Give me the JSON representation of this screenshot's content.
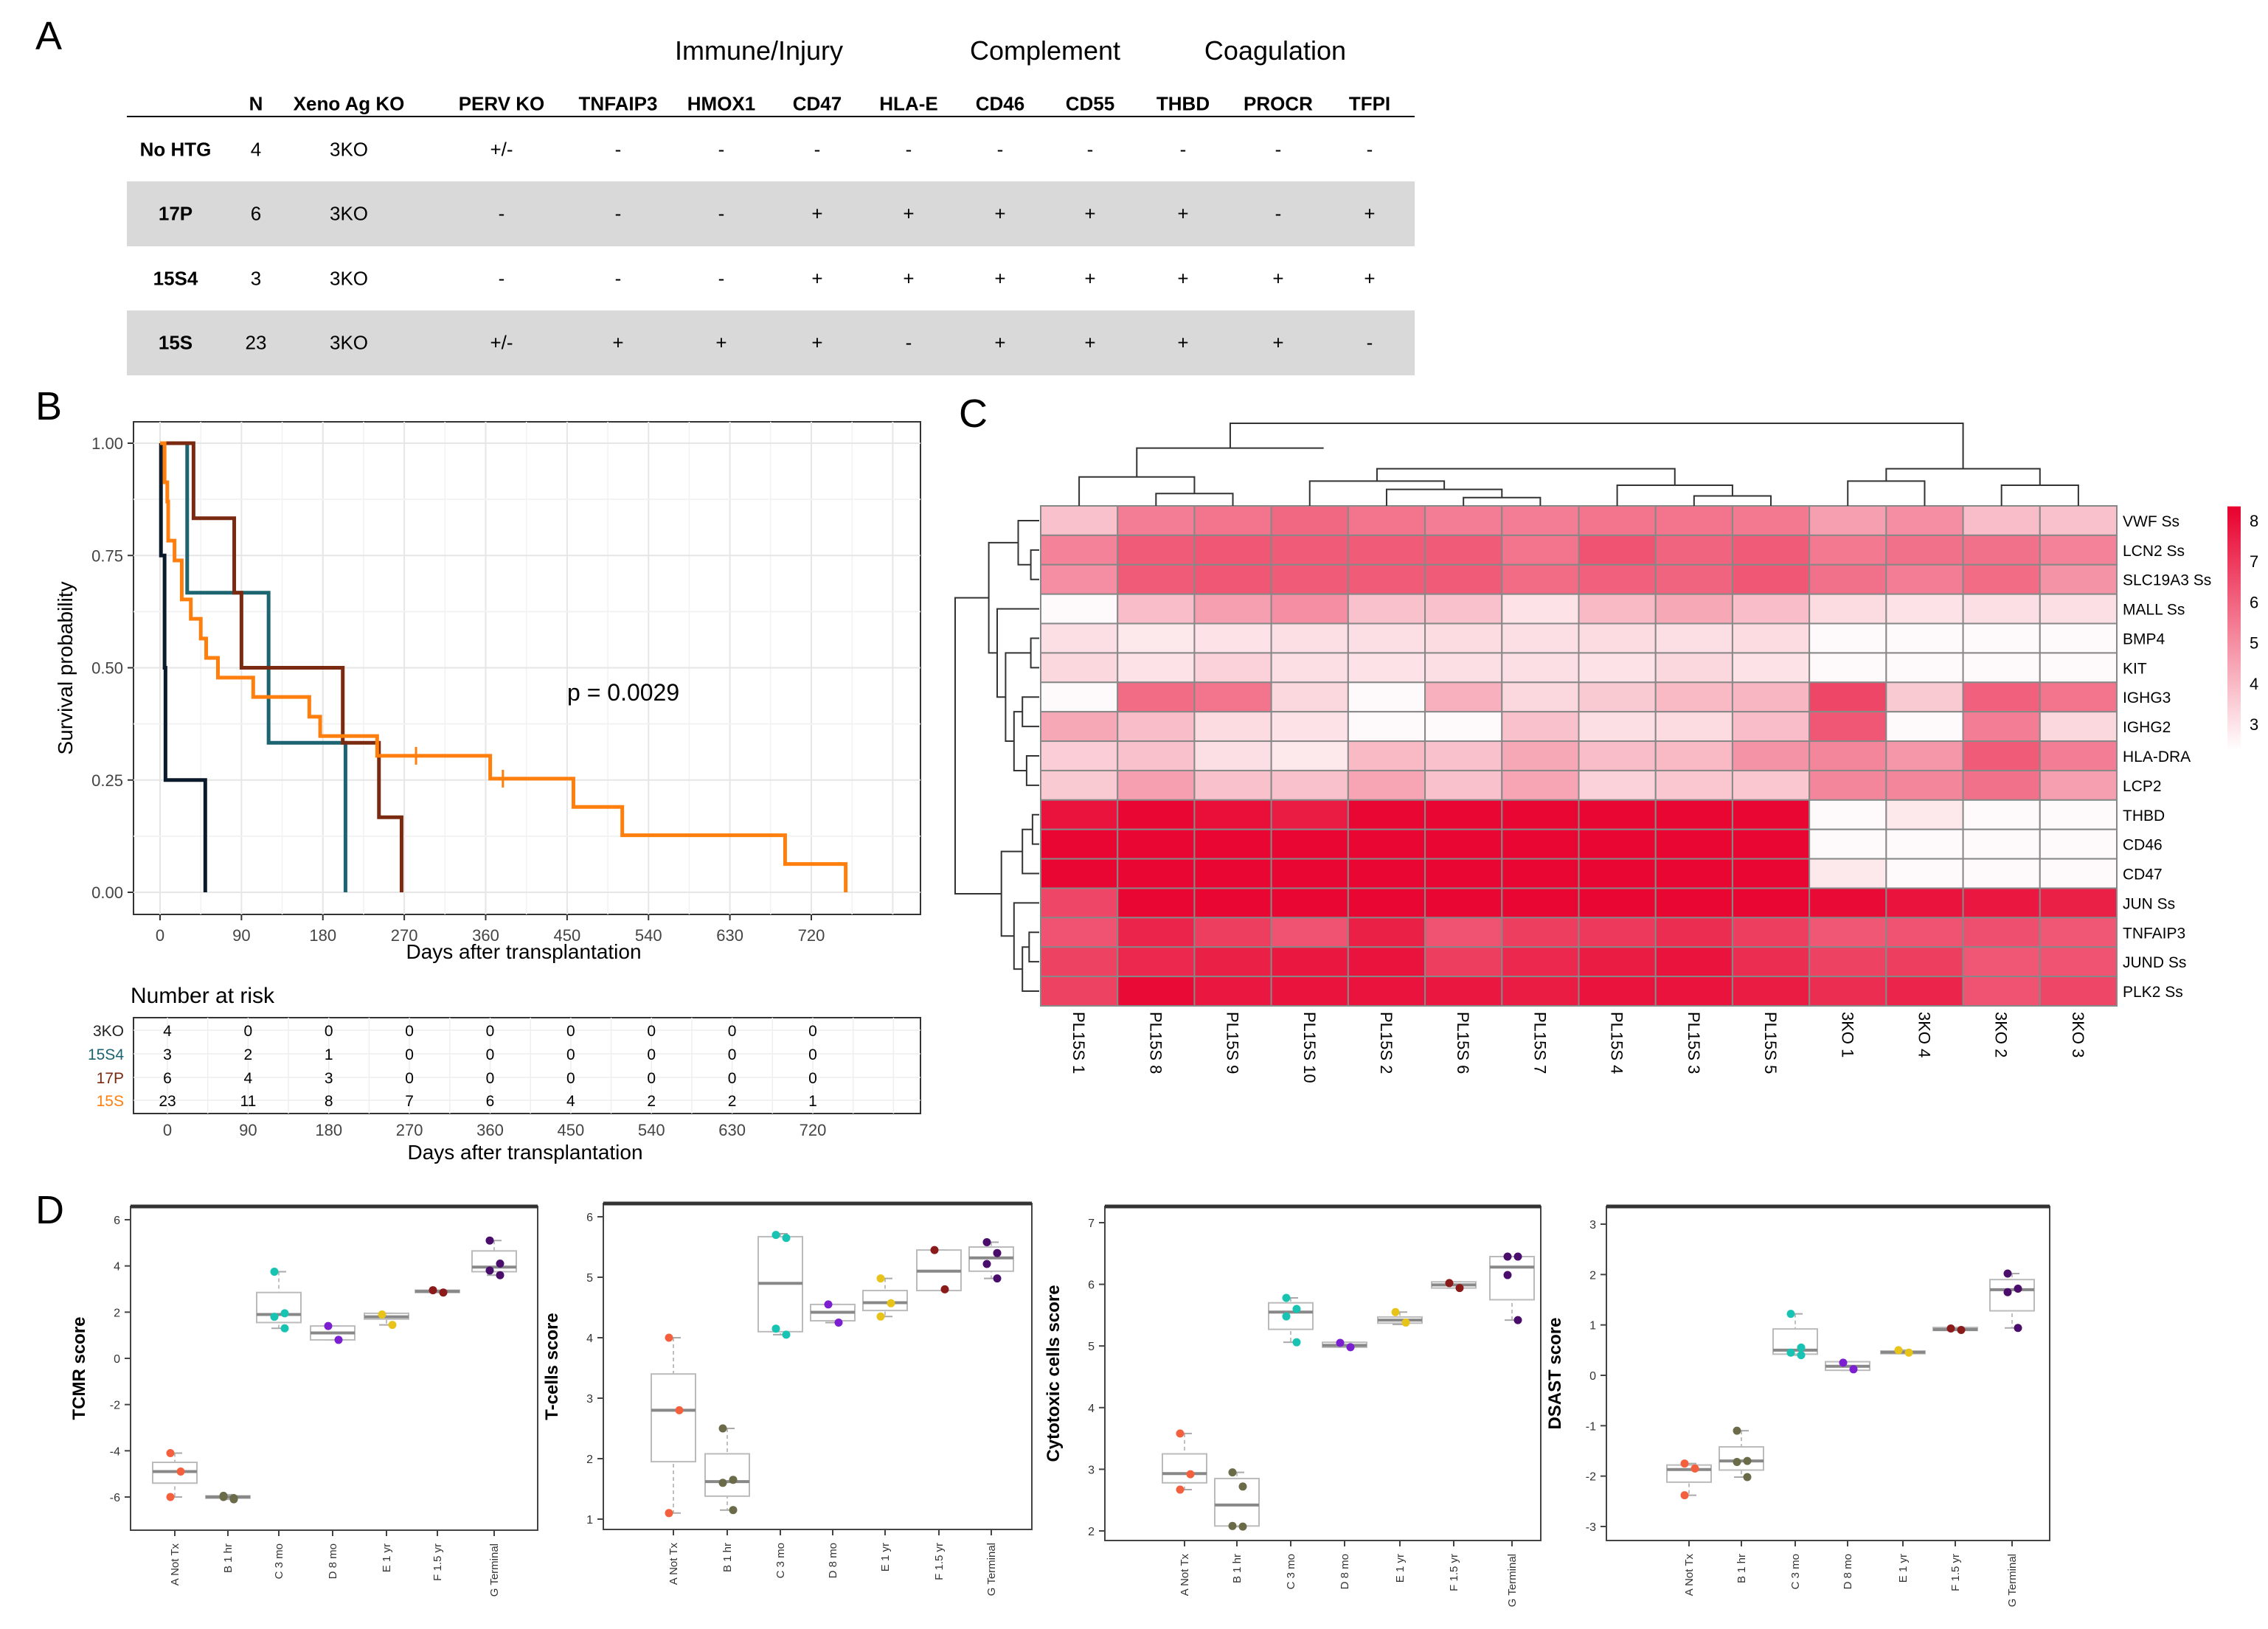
{
  "panels": {
    "a": "A",
    "b": "B",
    "c": "C",
    "d": "D"
  },
  "table": {
    "groups": [
      "Immune/Injury",
      "Complement",
      "Coagulation"
    ],
    "columns": [
      "N",
      "Xeno Ag KO",
      "PERV KO",
      "TNFAIP3",
      "HMOX1",
      "CD47",
      "HLA-E",
      "CD46",
      "CD55",
      "THBD",
      "PROCR",
      "TFPI"
    ],
    "rows": [
      {
        "label": "No HTG",
        "shaded": false,
        "cells": [
          "4",
          "3KO",
          "+/-",
          "-",
          "-",
          "-",
          "-",
          "-",
          "-",
          "-",
          "-",
          "-"
        ]
      },
      {
        "label": "17P",
        "shaded": true,
        "cells": [
          "6",
          "3KO",
          "-",
          "-",
          "-",
          "+",
          "+",
          "+",
          "+",
          "+",
          "-",
          "+"
        ]
      },
      {
        "label": "15S4",
        "shaded": false,
        "cells": [
          "3",
          "3KO",
          "-",
          "-",
          "-",
          "+",
          "+",
          "+",
          "+",
          "+",
          "+",
          "+"
        ]
      },
      {
        "label": "15S",
        "shaded": true,
        "cells": [
          "23",
          "3KO",
          "+/-",
          "+",
          "+",
          "+",
          "-",
          "+",
          "+",
          "+",
          "+",
          "-"
        ]
      }
    ]
  },
  "chart_data": [
    {
      "type": "line",
      "subtype": "kaplan-meier",
      "xlabel": "Days after transplantation",
      "ylabel": "Survival probability",
      "xlim": [
        0,
        810
      ],
      "ylim": [
        0,
        1
      ],
      "xticks": [
        0,
        90,
        180,
        270,
        360,
        450,
        540,
        630,
        720
      ],
      "yticks": [
        "0.00",
        "0.25",
        "0.50",
        "0.75",
        "1.00"
      ],
      "grid": true,
      "annotation": "p = 0.0029",
      "series": [
        {
          "name": "3KO",
          "color": "#0b1a2a",
          "steps": [
            [
              0,
              1
            ],
            [
              1,
              0.75
            ],
            [
              5,
              0.5
            ],
            [
              6,
              0.25
            ],
            [
              50,
              0
            ]
          ],
          "censored": []
        },
        {
          "name": "15S4",
          "color": "#1b6470",
          "steps": [
            [
              0,
              1
            ],
            [
              30,
              0.667
            ],
            [
              120,
              0.333
            ],
            [
              205,
              0
            ]
          ],
          "censored": []
        },
        {
          "name": "17P",
          "color": "#7a2a10",
          "steps": [
            [
              0,
              1
            ],
            [
              37,
              0.833
            ],
            [
              82,
              0.667
            ],
            [
              90,
              0.5
            ],
            [
              202,
              0.333
            ],
            [
              242,
              0.167
            ],
            [
              267,
              0
            ]
          ],
          "censored": []
        },
        {
          "name": "15S",
          "color": "#ff7f0e",
          "steps": [
            [
              0,
              1
            ],
            [
              5,
              0.913
            ],
            [
              8,
              0.87
            ],
            [
              9,
              0.783
            ],
            [
              16,
              0.739
            ],
            [
              24,
              0.652
            ],
            [
              34,
              0.609
            ],
            [
              45,
              0.565
            ],
            [
              51,
              0.522
            ],
            [
              64,
              0.478
            ],
            [
              103,
              0.435
            ],
            [
              165,
              0.391
            ],
            [
              177,
              0.348
            ],
            [
              240,
              0.304
            ],
            [
              365,
              0.253
            ],
            [
              457,
              0.19
            ],
            [
              511,
              0.127
            ],
            [
              691,
              0.063
            ],
            [
              758,
              0
            ]
          ],
          "censored": [
            [
              283,
              0.304
            ],
            [
              379,
              0.253
            ]
          ]
        }
      ],
      "risk_table": {
        "title": "Number at risk",
        "xlabel": "Days after transplantation",
        "times": [
          0,
          90,
          180,
          270,
          360,
          450,
          540,
          630,
          720
        ],
        "rows": [
          {
            "name": "3KO",
            "color": "#0b1a2a",
            "values": [
              4,
              0,
              0,
              0,
              0,
              0,
              0,
              0,
              0
            ]
          },
          {
            "name": "15S4",
            "color": "#1b6470",
            "values": [
              3,
              2,
              1,
              0,
              0,
              0,
              0,
              0,
              0
            ]
          },
          {
            "name": "17P",
            "color": "#7a2a10",
            "values": [
              6,
              4,
              3,
              0,
              0,
              0,
              0,
              0,
              0
            ]
          },
          {
            "name": "15S",
            "color": "#ff7f0e",
            "values": [
              23,
              11,
              8,
              7,
              6,
              4,
              2,
              2,
              1
            ]
          }
        ]
      }
    },
    {
      "type": "heatmap",
      "columns": [
        "PL15S 1",
        "PL15S 8",
        "PL15S 9",
        "PL15S 10",
        "PL15S 2",
        "PL15S 6",
        "PL15S 7",
        "PL15S 4",
        "PL15S 3",
        "PL15S 5",
        "3KO 1",
        "3KO 4",
        "3KO 2",
        "3KO 3"
      ],
      "rows": [
        "VWF Ss",
        "LCN2 Ss",
        "SLC19A3 Ss",
        "MALL Ss",
        "BMP4",
        "KIT",
        "IGHG3",
        "IGHG2",
        "HLA-DRA",
        "LCP2",
        "THBD",
        "CD46",
        "CD47",
        "JUN Ss",
        "TNFAIP3",
        "JUND Ss",
        "PLK2 Ss"
      ],
      "values": [
        [
          3.8,
          5.4,
          5.6,
          5.9,
          5.6,
          5.4,
          5.4,
          5.6,
          5.6,
          5.5,
          4.6,
          5.0,
          3.9,
          3.8
        ],
        [
          5.3,
          6.2,
          6.3,
          6.2,
          6.2,
          6.2,
          5.6,
          6.4,
          6.0,
          6.2,
          5.5,
          5.7,
          5.7,
          5.3
        ],
        [
          5.0,
          6.2,
          6.3,
          6.2,
          6.2,
          6.2,
          5.8,
          6.1,
          6.0,
          6.3,
          5.7,
          5.4,
          5.8,
          4.9
        ],
        [
          2.5,
          3.9,
          4.6,
          5.0,
          3.8,
          3.8,
          3.0,
          4.0,
          4.4,
          3.9,
          3.2,
          3.0,
          3.1,
          3.1
        ],
        [
          3.1,
          2.9,
          3.0,
          3.1,
          3.1,
          3.2,
          3.1,
          3.2,
          3.1,
          3.2,
          2.5,
          2.5,
          2.5,
          2.5
        ],
        [
          3.3,
          3.0,
          3.4,
          3.1,
          3.0,
          3.1,
          3.1,
          3.0,
          3.3,
          3.0,
          2.5,
          2.5,
          2.5,
          2.5
        ],
        [
          2.5,
          5.8,
          5.6,
          3.3,
          2.5,
          4.2,
          3.3,
          3.6,
          4.0,
          4.1,
          6.7,
          3.6,
          6.1,
          5.6
        ],
        [
          4.4,
          3.9,
          3.2,
          3.0,
          2.5,
          2.5,
          3.8,
          3.1,
          3.2,
          3.9,
          6.3,
          2.5,
          5.4,
          3.3
        ],
        [
          3.5,
          3.8,
          3.1,
          2.9,
          4.0,
          3.8,
          4.4,
          3.9,
          4.0,
          4.9,
          5.2,
          4.8,
          6.2,
          5.4
        ],
        [
          3.6,
          4.6,
          3.8,
          3.8,
          4.5,
          3.8,
          4.5,
          3.4,
          3.7,
          3.7,
          5.2,
          5.2,
          5.7,
          4.6
        ],
        [
          7.9,
          8.2,
          8.0,
          7.7,
          8.2,
          8.2,
          8.2,
          8.2,
          8.2,
          8.2,
          2.5,
          2.9,
          2.5,
          2.5
        ],
        [
          8.2,
          8.2,
          8.2,
          8.2,
          8.2,
          8.2,
          8.2,
          8.2,
          8.2,
          8.2,
          2.5,
          2.5,
          2.5,
          2.5
        ],
        [
          8.2,
          8.2,
          8.2,
          8.2,
          8.2,
          8.2,
          8.2,
          8.2,
          8.2,
          8.2,
          2.9,
          2.5,
          2.5,
          2.5
        ],
        [
          6.7,
          8.2,
          8.2,
          8.2,
          8.2,
          8.2,
          8.2,
          8.2,
          8.2,
          8.2,
          8.1,
          7.9,
          7.8,
          7.6
        ],
        [
          6.4,
          7.5,
          6.9,
          6.4,
          7.6,
          6.4,
          6.9,
          7.0,
          7.3,
          6.9,
          6.3,
          6.4,
          6.5,
          6.3
        ],
        [
          6.8,
          7.4,
          7.6,
          7.8,
          7.9,
          6.9,
          7.4,
          7.7,
          7.9,
          7.3,
          6.8,
          6.9,
          6.3,
          6.4
        ],
        [
          6.8,
          8.1,
          7.8,
          7.9,
          7.9,
          7.8,
          7.7,
          7.9,
          7.9,
          7.7,
          7.3,
          7.5,
          6.4,
          6.7
        ]
      ],
      "color_scale": {
        "low": "#ffffff",
        "high": "#e8002d",
        "range": [
          2.35,
          8.35
        ],
        "ticks": [
          3,
          4,
          5,
          6,
          7,
          8
        ]
      },
      "dendrogram": {
        "rows": true,
        "columns": true
      }
    },
    {
      "type": "box",
      "ylabel": "TCMR score",
      "ylim": [
        -7.5,
        6.5
      ],
      "yticks": [
        -6,
        -4,
        -2,
        0,
        2,
        4,
        6
      ],
      "categories": [
        "A Not Tx",
        "B 1 hr",
        "C 3 mo",
        "D 8 mo",
        "E 1 yr",
        "F 1.5 yr",
        "G Terminal"
      ],
      "boxes": [
        {
          "q1": -5.4,
          "median": -4.9,
          "q3": -4.5,
          "low": -6.0,
          "high": -4.1,
          "points": [
            -4.1,
            -4.9,
            -6.0
          ]
        },
        {
          "q1": -6.05,
          "median": -6.0,
          "q3": -5.95,
          "low": -6.1,
          "high": -5.9,
          "points": [
            -5.95,
            -6.05,
            -6.0,
            -6.1
          ]
        },
        {
          "q1": 1.55,
          "median": 1.9,
          "q3": 2.85,
          "low": 1.3,
          "high": 3.75,
          "points": [
            3.75,
            1.95,
            1.8,
            1.3
          ]
        },
        {
          "q1": 0.8,
          "median": 1.1,
          "q3": 1.4,
          "low": 0.8,
          "high": 1.4,
          "points": [
            1.4,
            0.8
          ]
        },
        {
          "q1": 1.7,
          "median": 1.8,
          "q3": 1.95,
          "low": 1.45,
          "high": 1.95,
          "points": [
            1.9,
            1.45
          ]
        },
        {
          "q1": 2.85,
          "median": 2.9,
          "q3": 2.95,
          "low": 2.85,
          "high": 2.95,
          "points": [
            2.95,
            2.85
          ]
        },
        {
          "q1": 3.75,
          "median": 3.95,
          "q3": 4.65,
          "low": 3.6,
          "high": 5.1,
          "points": [
            5.1,
            4.1,
            3.8,
            3.6
          ]
        }
      ]
    },
    {
      "type": "box",
      "ylabel": "T-cells score",
      "ylim": [
        0.8,
        6.2
      ],
      "yticks": [
        1,
        2,
        3,
        4,
        5,
        6
      ],
      "categories": [
        "A Not Tx",
        "B 1 hr",
        "C 3 mo",
        "D 8 mo",
        "E 1 yr",
        "F 1.5 yr",
        "G Terminal"
      ],
      "boxes": [
        {
          "q1": 1.95,
          "median": 2.8,
          "q3": 3.4,
          "low": 1.1,
          "high": 4.0,
          "points": [
            4.0,
            2.8,
            1.1
          ]
        },
        {
          "q1": 1.38,
          "median": 1.62,
          "q3": 2.08,
          "low": 1.15,
          "high": 2.5,
          "points": [
            2.5,
            1.65,
            1.6,
            1.15
          ]
        },
        {
          "q1": 4.1,
          "median": 4.9,
          "q3": 5.67,
          "low": 4.05,
          "high": 5.72,
          "points": [
            5.7,
            5.65,
            4.15,
            4.05
          ]
        },
        {
          "q1": 4.28,
          "median": 4.42,
          "q3": 4.55,
          "low": 4.25,
          "high": 4.55,
          "points": [
            4.55,
            4.25
          ]
        },
        {
          "q1": 4.45,
          "median": 4.58,
          "q3": 4.78,
          "low": 4.35,
          "high": 4.98,
          "points": [
            4.98,
            4.57,
            4.35
          ]
        },
        {
          "q1": 4.78,
          "median": 5.1,
          "q3": 5.45,
          "low": 4.78,
          "high": 5.45,
          "points": [
            5.45,
            4.8
          ]
        },
        {
          "q1": 5.1,
          "median": 5.32,
          "q3": 5.5,
          "low": 4.98,
          "high": 5.58,
          "points": [
            5.58,
            5.4,
            5.22,
            4.98
          ]
        }
      ]
    },
    {
      "type": "box",
      "ylabel": "Cytotoxic cells score",
      "ylim": [
        1.8,
        7.2
      ],
      "yticks": [
        2,
        3,
        4,
        5,
        6,
        7
      ],
      "categories": [
        "A Not Tx",
        "B 1 hr",
        "C 3 mo",
        "D 8 mo",
        "E 1 yr",
        "F 1.5 yr",
        "G Terminal"
      ],
      "boxes": [
        {
          "q1": 2.78,
          "median": 2.93,
          "q3": 3.25,
          "low": 2.67,
          "high": 3.58,
          "points": [
            3.58,
            2.92,
            2.67
          ]
        },
        {
          "q1": 2.08,
          "median": 2.42,
          "q3": 2.85,
          "low": 2.07,
          "high": 2.95,
          "points": [
            2.95,
            2.72,
            2.08,
            2.07
          ]
        },
        {
          "q1": 5.27,
          "median": 5.55,
          "q3": 5.7,
          "low": 5.06,
          "high": 5.78,
          "points": [
            5.78,
            5.6,
            5.48,
            5.06
          ]
        },
        {
          "q1": 4.98,
          "median": 5.01,
          "q3": 5.06,
          "low": 4.98,
          "high": 5.06,
          "points": [
            5.05,
            4.98
          ]
        },
        {
          "q1": 5.37,
          "median": 5.42,
          "q3": 5.47,
          "low": 5.35,
          "high": 5.55,
          "points": [
            5.55,
            5.38
          ]
        },
        {
          "q1": 5.94,
          "median": 5.99,
          "q3": 6.04,
          "low": 5.94,
          "high": 6.04,
          "points": [
            6.02,
            5.94
          ]
        },
        {
          "q1": 5.75,
          "median": 6.28,
          "q3": 6.45,
          "low": 5.42,
          "high": 6.45,
          "points": [
            6.45,
            6.45,
            6.15,
            5.42
          ]
        }
      ]
    },
    {
      "type": "box",
      "ylabel": "DSAST score",
      "ylim": [
        -3.3,
        3.3
      ],
      "yticks": [
        -3,
        -2,
        -1,
        0,
        1,
        2,
        3
      ],
      "categories": [
        "A Not Tx",
        "B 1 hr",
        "C 3 mo",
        "D 8 mo",
        "E 1 yr",
        "F 1.5 yr",
        "G Terminal"
      ],
      "boxes": [
        {
          "q1": -2.12,
          "median": -1.87,
          "q3": -1.78,
          "low": -2.38,
          "high": -1.75,
          "points": [
            -1.75,
            -1.85,
            -2.38
          ]
        },
        {
          "q1": -1.88,
          "median": -1.7,
          "q3": -1.42,
          "low": -2.02,
          "high": -1.1,
          "points": [
            -1.1,
            -1.7,
            -1.72,
            -2.02
          ]
        },
        {
          "q1": 0.42,
          "median": 0.5,
          "q3": 0.92,
          "low": 0.4,
          "high": 1.22,
          "points": [
            1.22,
            0.55,
            0.45,
            0.4
          ]
        },
        {
          "q1": 0.1,
          "median": 0.18,
          "q3": 0.27,
          "low": 0.1,
          "high": 0.27,
          "points": [
            0.25,
            0.12
          ]
        },
        {
          "q1": 0.43,
          "median": 0.46,
          "q3": 0.48,
          "low": 0.43,
          "high": 0.5,
          "points": [
            0.5,
            0.45
          ]
        },
        {
          "q1": 0.89,
          "median": 0.91,
          "q3": 0.95,
          "low": 0.89,
          "high": 0.95,
          "points": [
            0.93,
            0.9
          ]
        },
        {
          "q1": 1.28,
          "median": 1.7,
          "q3": 1.9,
          "low": 0.94,
          "high": 2.02,
          "points": [
            2.02,
            1.72,
            1.65,
            0.94
          ]
        }
      ]
    }
  ],
  "box_point_colors": [
    "#f4603d",
    "#6b6b4a",
    "#17c3b2",
    "#7b1fd1",
    "#e8c31a",
    "#8b1a1a",
    "#4a0d6b"
  ]
}
